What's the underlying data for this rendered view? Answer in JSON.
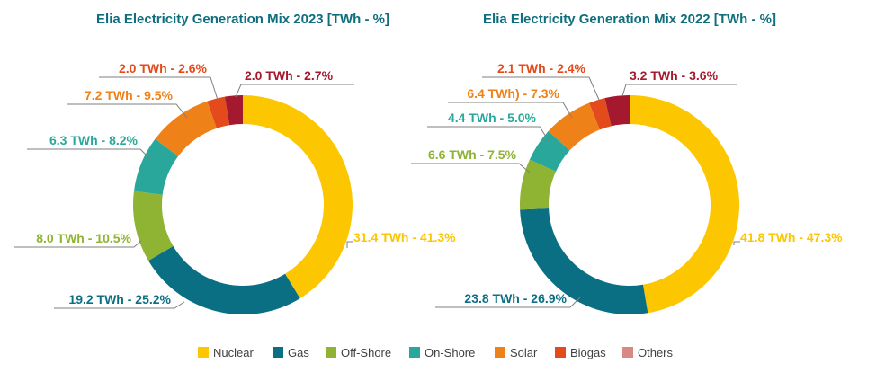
{
  "chart_data": [
    {
      "type": "pie",
      "variant": "donut",
      "title": "Elia Electricity Generation Mix 2023 [TWh - %]",
      "unit": "TWh",
      "slices": [
        {
          "category": "Nuclear",
          "value": 31.4,
          "percent": 41.3,
          "label": "31.4 TWh - 41.3%"
        },
        {
          "category": "Gas",
          "value": 19.2,
          "percent": 25.2,
          "label": "19.2 TWh - 25.2%"
        },
        {
          "category": "Off-Shore",
          "value": 8.0,
          "percent": 10.5,
          "label": "8.0 TWh - 10.5%"
        },
        {
          "category": "On-Shore",
          "value": 6.3,
          "percent": 8.2,
          "label": "6.3 TWh - 8.2%"
        },
        {
          "category": "Solar",
          "value": 7.2,
          "percent": 9.5,
          "label": "7.2 TWh - 9.5%"
        },
        {
          "category": "Biogas",
          "value": 2.0,
          "percent": 2.6,
          "label": "2.0 TWh - 2.6%"
        },
        {
          "category": "Others",
          "value": 2.0,
          "percent": 2.7,
          "label": "2.0 TWh - 2.7%"
        }
      ]
    },
    {
      "type": "pie",
      "variant": "donut",
      "title": "Elia Electricity Generation Mix 2022 [TWh - %]",
      "unit": "TWh",
      "slices": [
        {
          "category": "Nuclear",
          "value": 41.8,
          "percent": 47.3,
          "label": "41.8 TWh - 47.3%"
        },
        {
          "category": "Gas",
          "value": 23.8,
          "percent": 26.9,
          "label": "23.8 TWh - 26.9%"
        },
        {
          "category": "Off-Shore",
          "value": 6.6,
          "percent": 7.5,
          "label": "6.6 TWh - 7.5%"
        },
        {
          "category": "On-Shore",
          "value": 4.4,
          "percent": 5.0,
          "label": "4.4 TWh - 5.0%"
        },
        {
          "category": "Solar",
          "value": 6.4,
          "percent": 7.3,
          "label": "6.4 TWh) - 7.3%"
        },
        {
          "category": "Biogas",
          "value": 2.1,
          "percent": 2.4,
          "label": "2.1 TWh - 2.4%"
        },
        {
          "category": "Others",
          "value": 3.2,
          "percent": 3.6,
          "label": "3.2 TWh - 3.6%"
        }
      ]
    }
  ],
  "legend": {
    "placement": "bottom",
    "items": [
      {
        "name": "Nuclear",
        "color": "#fcc600",
        "text_color": "#fcc600"
      },
      {
        "name": "Gas",
        "color": "#0b6f84",
        "text_color": "#0b6f84"
      },
      {
        "name": "Off-Shore",
        "color": "#8fb332",
        "text_color": "#8fb332"
      },
      {
        "name": "On-Shore",
        "color": "#2aa79b",
        "text_color": "#2aa79b"
      },
      {
        "name": "Solar",
        "color": "#ee8219",
        "text_color": "#ee8219"
      },
      {
        "name": "Biogas",
        "color": "#e34b1c",
        "text_color": "#e34b1c"
      },
      {
        "name": "Others",
        "color": "#d98883",
        "text_color": "#a5192e",
        "ring_color": "#a5192e"
      }
    ]
  }
}
